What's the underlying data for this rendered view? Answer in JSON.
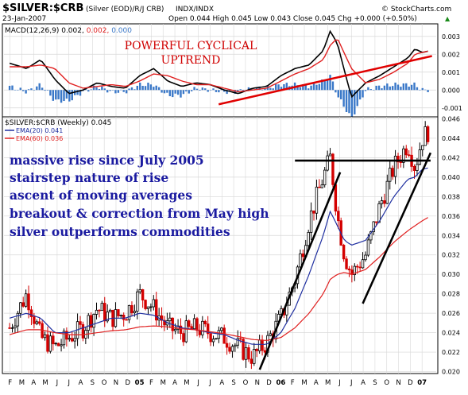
{
  "header": {
    "symbol": "$SILVER:$CRB",
    "description": "(Silver (EOD)/R/J CRB)",
    "exchange": "INDX/INDX",
    "copyright": "© StockCharts.com",
    "date": "23-Jan-2007",
    "ohlc": "Open 0.044  High 0.045  Low 0.043  Close 0.045  Chg +0.000 (+0.50%)",
    "ohlc_tail": "▲"
  },
  "macd_panel": {
    "legend_label": "MACD(12,26,9) 0.002, ",
    "signal_value": "0.002, ",
    "hist_value": "0.000",
    "annotation_line1": "POWERFUL CYCLICAL",
    "annotation_line2": "UPTREND"
  },
  "price_panel": {
    "legend_title": "$SILVER:$CRB (Weekly) 0.045",
    "ema20_label": "EMA(20) 0.041",
    "ema60_label": "EMA(60) 0.036",
    "notes": [
      "massive rise since July 2005",
      "stairstep nature of rise",
      "ascent of moving averages",
      "breakout & correction from May high",
      "silver outperforms commodities"
    ]
  },
  "x_axis": {
    "month_labels": [
      "F",
      "M",
      "A",
      "M",
      "J",
      "J",
      "A",
      "S",
      "O",
      "N",
      "D",
      "05",
      "F",
      "M",
      "A",
      "M",
      "J",
      "J",
      "A",
      "S",
      "O",
      "N",
      "D",
      "06",
      "F",
      "M",
      "A",
      "M",
      "J",
      "J",
      "A",
      "S",
      "O",
      "N",
      "D",
      "07"
    ]
  },
  "colors": {
    "up_bar": "#000000",
    "down_bar": "#d40000",
    "ema20": "#1f2fa0",
    "ema60": "#e02020",
    "macd": "#000000",
    "signal": "#e02020",
    "histogram": "#3a78c8",
    "note_text": "#1a1aa0",
    "annotation_text": "#d00000",
    "grid": "#d8d8d8"
  },
  "chart_data": [
    {
      "type": "line",
      "title": "MACD(12,26,9)",
      "ylim": [
        -0.0015,
        0.0037
      ],
      "y_ticks": [
        0.003,
        0.002,
        0.001,
        0.0,
        -0.001
      ],
      "y_tick_labels": [
        "0.003",
        "0.002",
        "0.001",
        "0.000",
        "-0.001"
      ],
      "x": [
        2004.08,
        2004.2,
        2004.3,
        2004.4,
        2004.5,
        2004.6,
        2004.7,
        2004.8,
        2004.9,
        2005.0,
        2005.1,
        2005.2,
        2005.3,
        2005.4,
        2005.5,
        2005.6,
        2005.7,
        2005.8,
        2005.9,
        2006.0,
        2006.1,
        2006.2,
        2006.3,
        2006.35,
        2006.4,
        2006.5,
        2006.6,
        2006.7,
        2006.8,
        2006.9,
        2006.95,
        2007.0,
        2007.06
      ],
      "series": [
        {
          "name": "MACD",
          "values": [
            0.0015,
            0.0012,
            0.0017,
            0.0006,
            -0.0002,
            0.0,
            0.0004,
            0.0002,
            0.0001,
            0.0008,
            0.0012,
            0.0005,
            0.0002,
            0.0004,
            0.0003,
            0.0,
            -0.0002,
            0.0001,
            0.0002,
            0.0008,
            0.0012,
            0.0014,
            0.0022,
            0.0033,
            0.0026,
            -0.0004,
            0.0004,
            0.0008,
            0.0013,
            0.0018,
            0.0023,
            0.0021,
            0.0022
          ]
        },
        {
          "name": "Signal",
          "values": [
            0.0013,
            0.0013,
            0.0014,
            0.0012,
            0.0004,
            0.0001,
            0.0002,
            0.0003,
            0.0002,
            0.0005,
            0.0009,
            0.0008,
            0.0005,
            0.0003,
            0.0003,
            0.0001,
            -0.0001,
            0.0,
            0.0001,
            0.0005,
            0.0009,
            0.0012,
            0.0017,
            0.0025,
            0.0029,
            0.0012,
            0.0004,
            0.0006,
            0.001,
            0.0015,
            0.002,
            0.0021,
            0.0022
          ]
        },
        {
          "name": "Histogram",
          "values": [
            0.0002,
            -0.0001,
            0.0003,
            -0.0006,
            -0.0006,
            -0.0001,
            0.0002,
            -0.0001,
            -0.0001,
            0.0003,
            0.0003,
            -0.0003,
            -0.0003,
            0.0001,
            0.0,
            -0.0001,
            -0.0001,
            0.0001,
            0.0001,
            0.0003,
            0.0003,
            0.0002,
            0.0005,
            0.0008,
            -0.0003,
            -0.0016,
            0.0,
            0.0002,
            0.0003,
            0.0003,
            0.0003,
            0.0,
            0.0
          ]
        }
      ]
    },
    {
      "type": "line",
      "title": "$SILVER:$CRB (Weekly)",
      "ylim": [
        0.0198,
        0.0462
      ],
      "y_ticks": [
        0.02,
        0.022,
        0.024,
        0.026,
        0.028,
        0.03,
        0.032,
        0.034,
        0.036,
        0.038,
        0.04,
        0.042,
        0.044,
        0.046
      ],
      "y_tick_labels": [
        "0.020",
        "0.022",
        "0.024",
        "0.026",
        "0.028",
        "0.030",
        "0.032",
        "0.034",
        "0.036",
        "0.038",
        "0.040",
        "0.042",
        "0.044",
        "0.046"
      ],
      "x": [
        2004.08,
        2004.2,
        2004.3,
        2004.4,
        2004.5,
        2004.6,
        2004.7,
        2004.8,
        2004.9,
        2005.0,
        2005.1,
        2005.2,
        2005.3,
        2005.4,
        2005.5,
        2005.6,
        2005.7,
        2005.8,
        2005.9,
        2006.0,
        2006.1,
        2006.2,
        2006.3,
        2006.35,
        2006.4,
        2006.45,
        2006.5,
        2006.6,
        2006.7,
        2006.8,
        2006.9,
        2006.95,
        2007.0,
        2007.06
      ],
      "series": [
        {
          "name": "Price",
          "values": [
            0.0245,
            0.028,
            0.0235,
            0.0225,
            0.0235,
            0.0245,
            0.0265,
            0.0255,
            0.026,
            0.028,
            0.0265,
            0.0245,
            0.024,
            0.0245,
            0.024,
            0.0235,
            0.0225,
            0.0215,
            0.023,
            0.0255,
            0.0295,
            0.0355,
            0.04,
            0.042,
            0.036,
            0.032,
            0.03,
            0.032,
            0.037,
            0.041,
            0.0435,
            0.041,
            0.044,
            0.045
          ]
        },
        {
          "name": "EMA(20)",
          "values": [
            0.0255,
            0.026,
            0.0255,
            0.024,
            0.024,
            0.0245,
            0.025,
            0.0255,
            0.0255,
            0.026,
            0.0258,
            0.025,
            0.0245,
            0.0243,
            0.024,
            0.0238,
            0.0232,
            0.0228,
            0.0228,
            0.024,
            0.0265,
            0.03,
            0.034,
            0.0365,
            0.035,
            0.0335,
            0.033,
            0.0335,
            0.0355,
            0.038,
            0.0398,
            0.04,
            0.0408,
            0.041
          ]
        },
        {
          "name": "EMA(60)",
          "values": [
            0.0238,
            0.0243,
            0.0243,
            0.024,
            0.0238,
            0.0238,
            0.024,
            0.0242,
            0.0243,
            0.0246,
            0.0247,
            0.0246,
            0.0244,
            0.0243,
            0.0241,
            0.0239,
            0.0236,
            0.0233,
            0.0232,
            0.0235,
            0.0245,
            0.026,
            0.028,
            0.0295,
            0.03,
            0.0302,
            0.03,
            0.0305,
            0.0318,
            0.0333,
            0.0345,
            0.035,
            0.0355,
            0.036
          ]
        }
      ],
      "annotations": [
        {
          "type": "horizontal_line",
          "y": 0.0417,
          "x_range": [
            2006.1,
            2007.06
          ]
        },
        {
          "type": "trend_line",
          "from": [
            2005.85,
            0.0202
          ],
          "to": [
            2006.42,
            0.0405
          ]
        },
        {
          "type": "trend_line",
          "from": [
            2006.58,
            0.027
          ],
          "to": [
            2007.06,
            0.0425
          ]
        }
      ]
    }
  ]
}
